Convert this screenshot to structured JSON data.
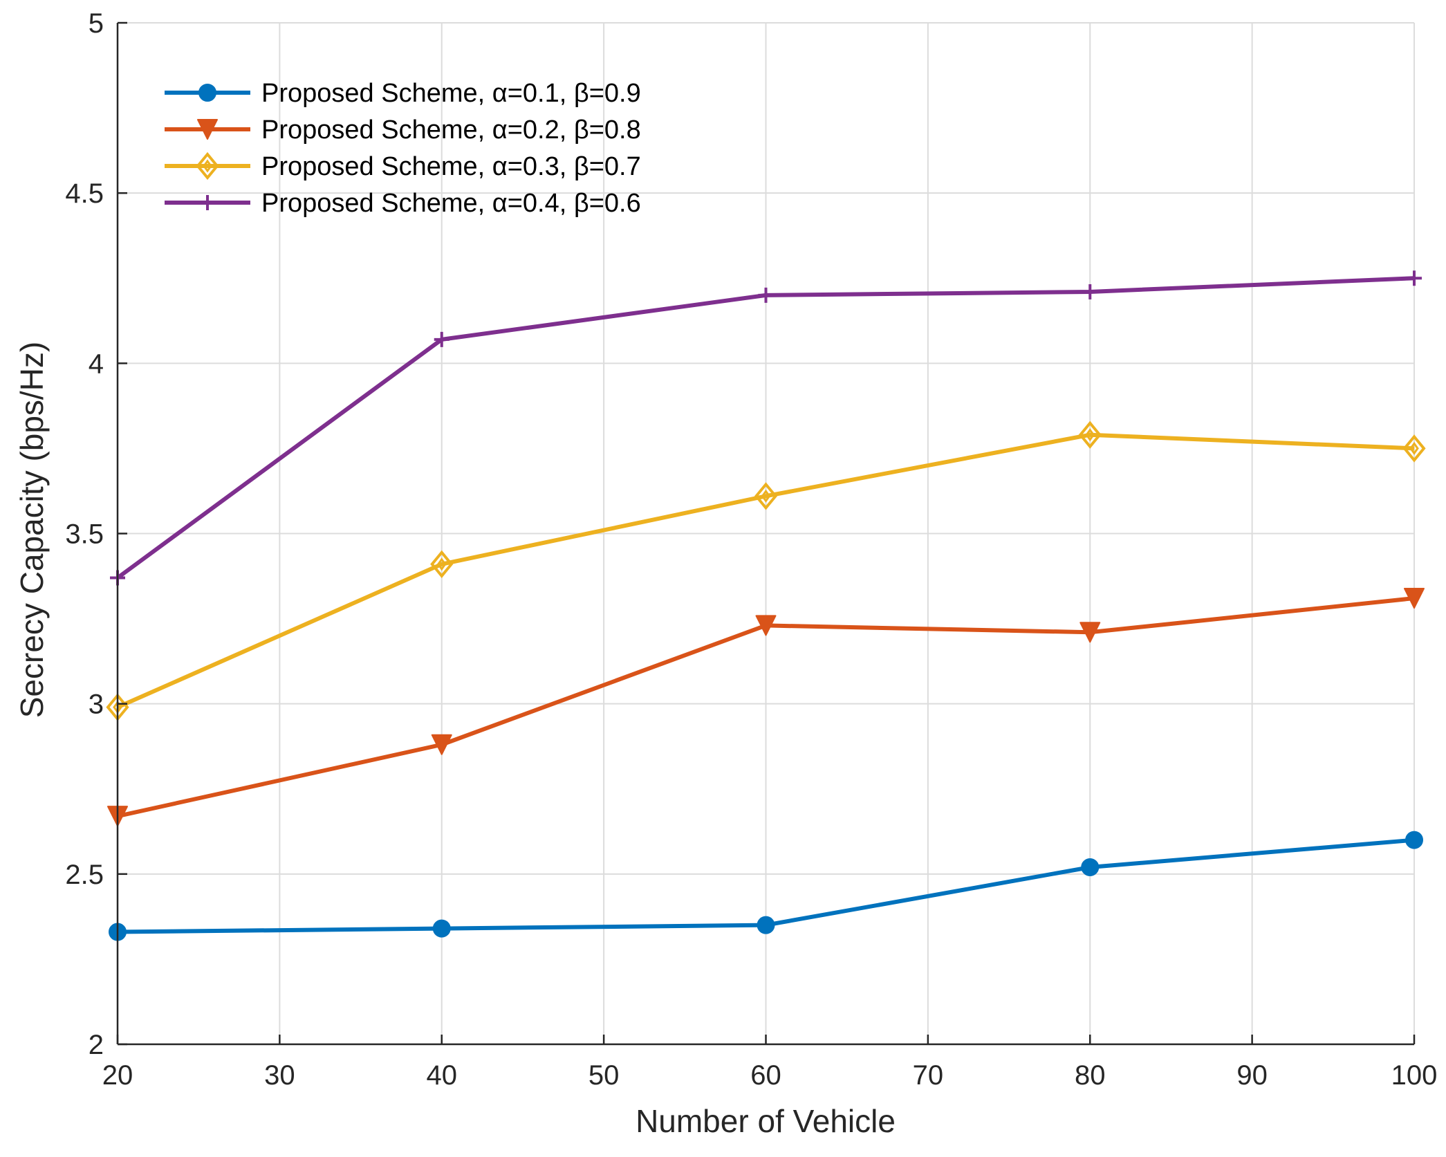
{
  "chart_data": {
    "type": "line",
    "title": "",
    "xlabel": "Number of Vehicle",
    "ylabel": "Secrecy Capacity (bps/Hz)",
    "xlim": [
      20,
      100
    ],
    "ylim": [
      2,
      5
    ],
    "xticks": [
      20,
      30,
      40,
      50,
      60,
      70,
      80,
      90,
      100
    ],
    "yticks": [
      2,
      2.5,
      3,
      3.5,
      4,
      4.5,
      5
    ],
    "xtick_labels": [
      "20",
      "30",
      "40",
      "50",
      "60",
      "70",
      "80",
      "90",
      "100"
    ],
    "ytick_labels": [
      "2",
      "2.5",
      "3",
      "3.5",
      "4",
      "4.5",
      "5"
    ],
    "grid": true,
    "legend_position": "top-left",
    "x": [
      20,
      40,
      60,
      80,
      100
    ],
    "series": [
      {
        "name": "Proposed Scheme, α=0.1, β=0.9",
        "marker": "circle",
        "color": "#0072BD",
        "values": [
          2.33,
          2.34,
          2.35,
          2.52,
          2.6
        ]
      },
      {
        "name": "Proposed Scheme, α=0.2, β=0.8",
        "marker": "triangle-down",
        "color": "#D95319",
        "values": [
          2.67,
          2.88,
          3.23,
          3.21,
          3.31
        ]
      },
      {
        "name": "Proposed Scheme, α=0.3, β=0.7",
        "marker": "diamond",
        "color": "#EDB120",
        "values": [
          2.99,
          3.41,
          3.61,
          3.79,
          3.75
        ]
      },
      {
        "name": "Proposed Scheme, α=0.4, β=0.6",
        "marker": "plus",
        "color": "#7E2F8E",
        "values": [
          3.37,
          4.07,
          4.2,
          4.21,
          4.25
        ]
      }
    ]
  }
}
